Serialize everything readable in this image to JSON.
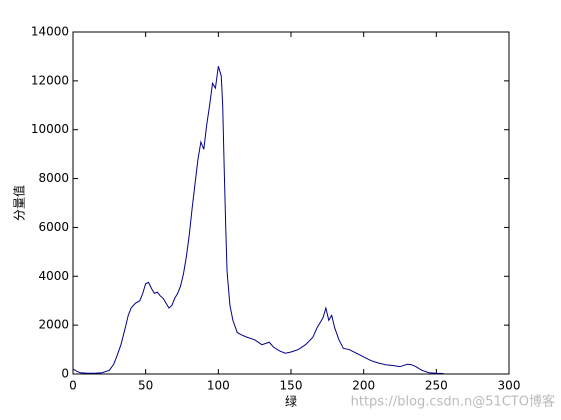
{
  "chart_data": {
    "type": "line",
    "xlabel": "绿",
    "ylabel": "分量值",
    "watermark": "https://blog.csdn.n@51CTO博客",
    "xlim": [
      0,
      300
    ],
    "xticks": [
      0,
      50,
      100,
      150,
      200,
      250,
      300
    ],
    "ylim": [
      0,
      14000
    ],
    "yticks": [
      0,
      2000,
      4000,
      6000,
      8000,
      10000,
      12000,
      14000
    ],
    "series": [
      {
        "color": "#00008b",
        "x": [
          0,
          3,
          5,
          10,
          15,
          20,
          25,
          28,
          30,
          33,
          36,
          38,
          40,
          43,
          46,
          48,
          50,
          52,
          54,
          56,
          58,
          60,
          62,
          64,
          66,
          68,
          70,
          72,
          74,
          76,
          78,
          80,
          82,
          84,
          86,
          88,
          90,
          92,
          94,
          96,
          98,
          100,
          102,
          103,
          104,
          105,
          106,
          108,
          110,
          113,
          116,
          120,
          125,
          130,
          135,
          138,
          142,
          146,
          150,
          155,
          160,
          165,
          168,
          170,
          172,
          174,
          176,
          178,
          180,
          183,
          186,
          190,
          195,
          200,
          205,
          210,
          215,
          220,
          225,
          230,
          233,
          236,
          240,
          245,
          250,
          255
        ],
        "values": [
          200,
          100,
          50,
          30,
          30,
          50,
          150,
          400,
          700,
          1200,
          1900,
          2400,
          2700,
          2900,
          3000,
          3300,
          3700,
          3750,
          3500,
          3300,
          3350,
          3200,
          3100,
          2900,
          2700,
          2800,
          3100,
          3300,
          3600,
          4100,
          4800,
          5700,
          6800,
          7800,
          8800,
          9500,
          9200,
          10200,
          11000,
          11900,
          11700,
          12600,
          12200,
          11000,
          8500,
          6200,
          4200,
          2800,
          2200,
          1700,
          1600,
          1500,
          1400,
          1200,
          1300,
          1100,
          950,
          850,
          900,
          1000,
          1200,
          1500,
          1900,
          2100,
          2300,
          2700,
          2200,
          2400,
          1900,
          1400,
          1050,
          1000,
          850,
          700,
          550,
          450,
          380,
          350,
          300,
          400,
          380,
          300,
          150,
          50,
          30,
          20
        ]
      }
    ]
  }
}
